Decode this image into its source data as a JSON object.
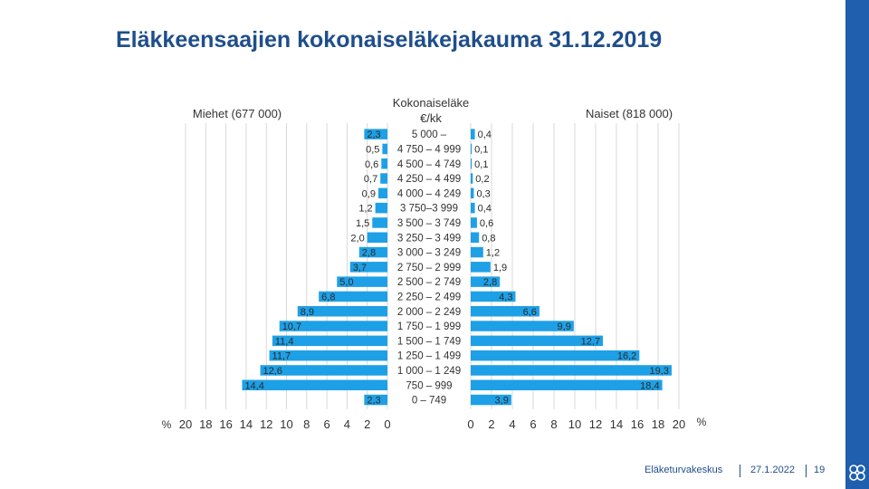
{
  "page": {
    "title": "Eläkkeensaajien kokonaiseläkejakauma 31.12.2019"
  },
  "footer": {
    "organization": "Eläketurvakeskus",
    "date": "27.1.2022",
    "page_number": "19"
  },
  "colors": {
    "bar": "#1ea0e6",
    "bar_edge": "#0c6fb3",
    "title": "#1f4e8c",
    "grid": "#d9d9d9",
    "strip": "#1f5fae"
  },
  "chart_data": {
    "type": "bar",
    "orientation": "horizontal",
    "layout": "population-pyramid",
    "center_title": "Kokonaiseläke",
    "center_unit": "€/kk",
    "unit_label": "%",
    "categories": [
      "5 000 –",
      "4 750 – 4 999",
      "4 500 – 4 749",
      "4 250 – 4 499",
      "4 000 – 4 249",
      "3 750–3 999",
      "3 500 – 3 749",
      "3 250 – 3 499",
      "3 000 – 3 249",
      "2 750 – 2 999",
      "2 500 – 2 749",
      "2 250 – 2 499",
      "2 000 – 2 249",
      "1 750 – 1 999",
      "1 500 – 1 749",
      "1 250 – 1 499",
      "1 000 – 1 249",
      "750 – 999",
      "0 – 749"
    ],
    "series": [
      {
        "name": "Miehet (677 000)",
        "side": "left",
        "values": [
          2.3,
          0.5,
          0.6,
          0.7,
          0.9,
          1.2,
          1.5,
          2.0,
          2.8,
          3.7,
          5.0,
          6.8,
          8.9,
          10.7,
          11.4,
          11.7,
          12.6,
          14.4,
          2.3
        ],
        "labels": [
          "2,3",
          "0,5",
          "0,6",
          "0,7",
          "0,9",
          "1,2",
          "1,5",
          "2,0",
          "2,8",
          "3,7",
          "5,0",
          "6,8",
          "8,9",
          "10,7",
          "11,4",
          "11,7",
          "12,6",
          "14,4",
          "2,3"
        ]
      },
      {
        "name": "Naiset (818 000)",
        "side": "right",
        "values": [
          0.4,
          0.1,
          0.1,
          0.2,
          0.3,
          0.4,
          0.6,
          0.8,
          1.2,
          1.9,
          2.8,
          4.3,
          6.6,
          9.9,
          12.7,
          16.2,
          19.3,
          18.4,
          3.9
        ],
        "labels": [
          "0,4",
          "0,1",
          "0,1",
          "0,2",
          "0,3",
          "0,4",
          "0,6",
          "0,8",
          "1,2",
          "1,9",
          "2,8",
          "4,3",
          "6,6",
          "9,9",
          "12,7",
          "16,2",
          "19,3",
          "18,4",
          "3,9"
        ]
      }
    ],
    "xlim_left": [
      0,
      20
    ],
    "xlim_right": [
      0,
      20
    ],
    "ticks_left": [
      20,
      18,
      16,
      14,
      12,
      10,
      8,
      6,
      4,
      2,
      0
    ],
    "ticks_right": [
      0,
      2,
      4,
      6,
      8,
      10,
      12,
      14,
      16,
      18,
      20
    ],
    "grid": true
  }
}
